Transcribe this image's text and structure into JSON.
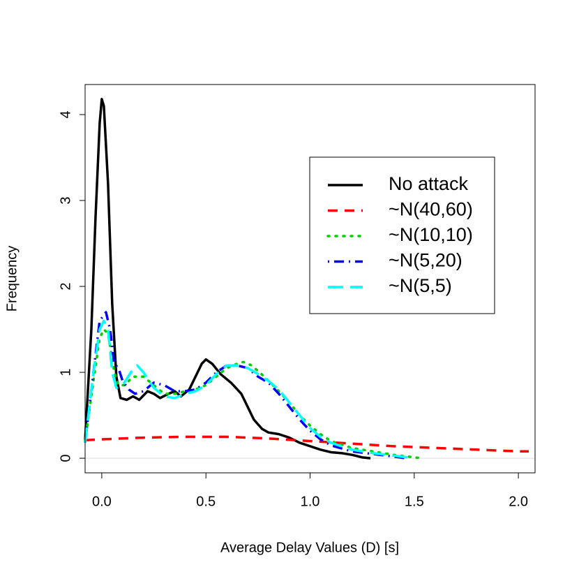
{
  "chart_data": {
    "type": "line",
    "xlabel": "Average Delay Values (D) [s]",
    "ylabel": "Frequency",
    "xlim": [
      -0.08,
      2.08
    ],
    "ylim": [
      -0.17,
      4.35
    ],
    "xticks": [
      {
        "value": 0,
        "label": "0.0"
      },
      0.5,
      {
        "value": 1,
        "label": "1.0"
      },
      1.5,
      {
        "value": 2,
        "label": "2.0"
      }
    ],
    "yticks": [
      0,
      1,
      2,
      3,
      4
    ],
    "legend_position": "right",
    "series": [
      {
        "name": "No attack",
        "color": "#000000",
        "linestyle": "solid",
        "x": [
          -0.08,
          -0.05,
          -0.03,
          -0.01,
          0.0,
          0.01,
          0.03,
          0.05,
          0.07,
          0.09,
          0.12,
          0.15,
          0.18,
          0.22,
          0.25,
          0.28,
          0.32,
          0.35,
          0.38,
          0.42,
          0.45,
          0.48,
          0.5,
          0.53,
          0.57,
          0.62,
          0.67,
          0.7,
          0.73,
          0.77,
          0.8,
          0.85,
          0.9,
          0.95,
          1.0,
          1.05,
          1.1,
          1.15,
          1.2,
          1.25,
          1.29
        ],
        "values": [
          0.21,
          1.5,
          2.8,
          3.9,
          4.18,
          4.1,
          3.2,
          1.8,
          0.95,
          0.7,
          0.68,
          0.72,
          0.68,
          0.78,
          0.75,
          0.7,
          0.75,
          0.78,
          0.72,
          0.8,
          0.95,
          1.1,
          1.15,
          1.1,
          0.98,
          0.88,
          0.75,
          0.6,
          0.45,
          0.34,
          0.3,
          0.28,
          0.24,
          0.18,
          0.14,
          0.1,
          0.07,
          0.06,
          0.04,
          0.01,
          0.0
        ]
      },
      {
        "name": "~N(40,60)",
        "color": "#ff0000",
        "linestyle": "dashed",
        "x": [
          -0.08,
          0.0,
          0.2,
          0.4,
          0.6,
          0.8,
          1.0,
          1.2,
          1.4,
          1.6,
          1.8,
          2.0,
          2.05
        ],
        "values": [
          0.21,
          0.22,
          0.24,
          0.25,
          0.25,
          0.23,
          0.2,
          0.17,
          0.14,
          0.12,
          0.1,
          0.08,
          0.08
        ]
      },
      {
        "name": "~N(10,10)",
        "color": "#00cd00",
        "linestyle": "dotted",
        "x": [
          -0.08,
          -0.04,
          -0.01,
          0.01,
          0.03,
          0.06,
          0.08,
          0.11,
          0.15,
          0.2,
          0.25,
          0.3,
          0.35,
          0.4,
          0.45,
          0.5,
          0.55,
          0.6,
          0.65,
          0.68,
          0.72,
          0.78,
          0.85,
          0.9,
          0.95,
          1.0,
          1.05,
          1.1,
          1.2,
          1.3,
          1.4,
          1.5,
          1.54
        ],
        "values": [
          0.2,
          0.9,
          1.4,
          1.5,
          1.45,
          1.0,
          0.85,
          0.85,
          0.95,
          0.95,
          0.85,
          0.75,
          0.75,
          0.78,
          0.8,
          0.85,
          0.95,
          1.05,
          1.1,
          1.12,
          1.08,
          0.95,
          0.78,
          0.65,
          0.5,
          0.38,
          0.28,
          0.2,
          0.12,
          0.08,
          0.04,
          0.01,
          0.0
        ]
      },
      {
        "name": "~N(5,20)",
        "color": "#0000ff",
        "linestyle": "dotdash",
        "x": [
          -0.08,
          -0.04,
          -0.01,
          0.02,
          0.04,
          0.06,
          0.08,
          0.1,
          0.13,
          0.16,
          0.2,
          0.25,
          0.3,
          0.35,
          0.4,
          0.45,
          0.5,
          0.55,
          0.6,
          0.65,
          0.7,
          0.75,
          0.8,
          0.85,
          0.9,
          0.95,
          1.0,
          1.05,
          1.1,
          1.2,
          1.3,
          1.4,
          1.46
        ],
        "values": [
          0.18,
          1.0,
          1.6,
          1.7,
          1.5,
          1.1,
          1.05,
          0.9,
          0.8,
          0.75,
          0.78,
          0.88,
          0.85,
          0.78,
          0.78,
          0.8,
          0.88,
          1.0,
          1.08,
          1.08,
          1.05,
          0.95,
          0.88,
          0.75,
          0.6,
          0.45,
          0.32,
          0.22,
          0.15,
          0.08,
          0.05,
          0.02,
          0.0
        ]
      },
      {
        "name": "~N(5,5)",
        "color": "#00ffff",
        "linestyle": "longdash",
        "x": [
          -0.08,
          -0.04,
          -0.01,
          0.01,
          0.03,
          0.05,
          0.07,
          0.1,
          0.14,
          0.17,
          0.2,
          0.25,
          0.3,
          0.35,
          0.4,
          0.45,
          0.5,
          0.55,
          0.6,
          0.65,
          0.7,
          0.75,
          0.8,
          0.85,
          0.9,
          0.95,
          1.0,
          1.05,
          1.1,
          1.2,
          1.3,
          1.4,
          1.5
        ],
        "values": [
          0.18,
          1.0,
          1.5,
          1.6,
          1.5,
          1.0,
          0.82,
          0.85,
          1.0,
          1.08,
          1.0,
          0.82,
          0.72,
          0.7,
          0.75,
          0.78,
          0.85,
          0.98,
          1.08,
          1.08,
          1.05,
          0.98,
          0.9,
          0.8,
          0.65,
          0.5,
          0.35,
          0.25,
          0.18,
          0.1,
          0.06,
          0.03,
          0.0
        ]
      }
    ]
  }
}
